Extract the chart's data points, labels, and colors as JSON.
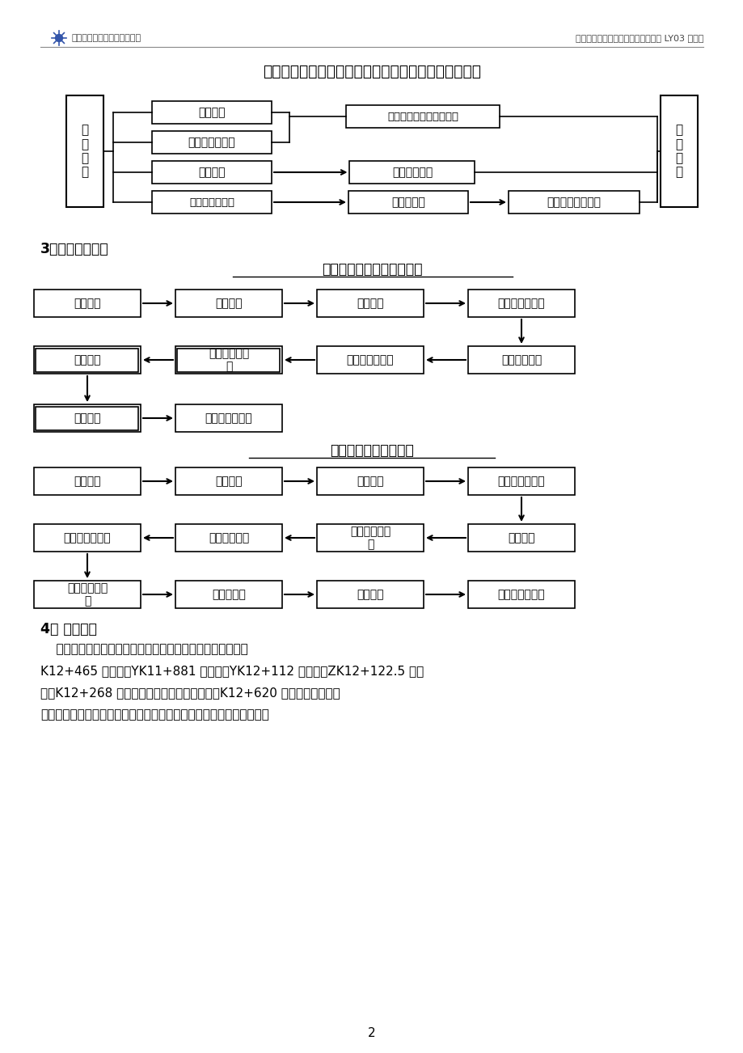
{
  "header_left": "中交二公局第三工程有限公司",
  "header_right": "兰州至永靖沿黄河快速通道一级公路 LY03 合同段",
  "intro_text": "初具开工条件时，填写开工报告。技术准备框图如下：",
  "section3_title": "3、涵洞施工工艺",
  "diagram1_title": "钢波纹管涵洞施工工艺框图",
  "diagram2_title": "盖板涵洞施工工艺框图",
  "section4_title": "4、 施工方法",
  "section4_lines": [
    "    本段落涵洞施工分为：钢波纹管涵洞与盖板涵洞施工。其中",
    "K12+465 圆管涵；YK11+881 圆管涵；YK12+112 圆管涵；ZK12+122.5 圆管",
    "涵；K12+268 圆管涵基底均设有水泥搅拌桩，K12+620 盖板涵基底无软基",
    "处理，其他七道涵洞基底均为砂砾换填软基处理，施工时按软基处理需"
  ],
  "page_number": "2",
  "bg_color": "#ffffff",
  "text_color": "#000000",
  "border_color": "#000000",
  "arrow_color": "#000000",
  "header_text_color": "#444444",
  "sep_line_color": "#888888"
}
